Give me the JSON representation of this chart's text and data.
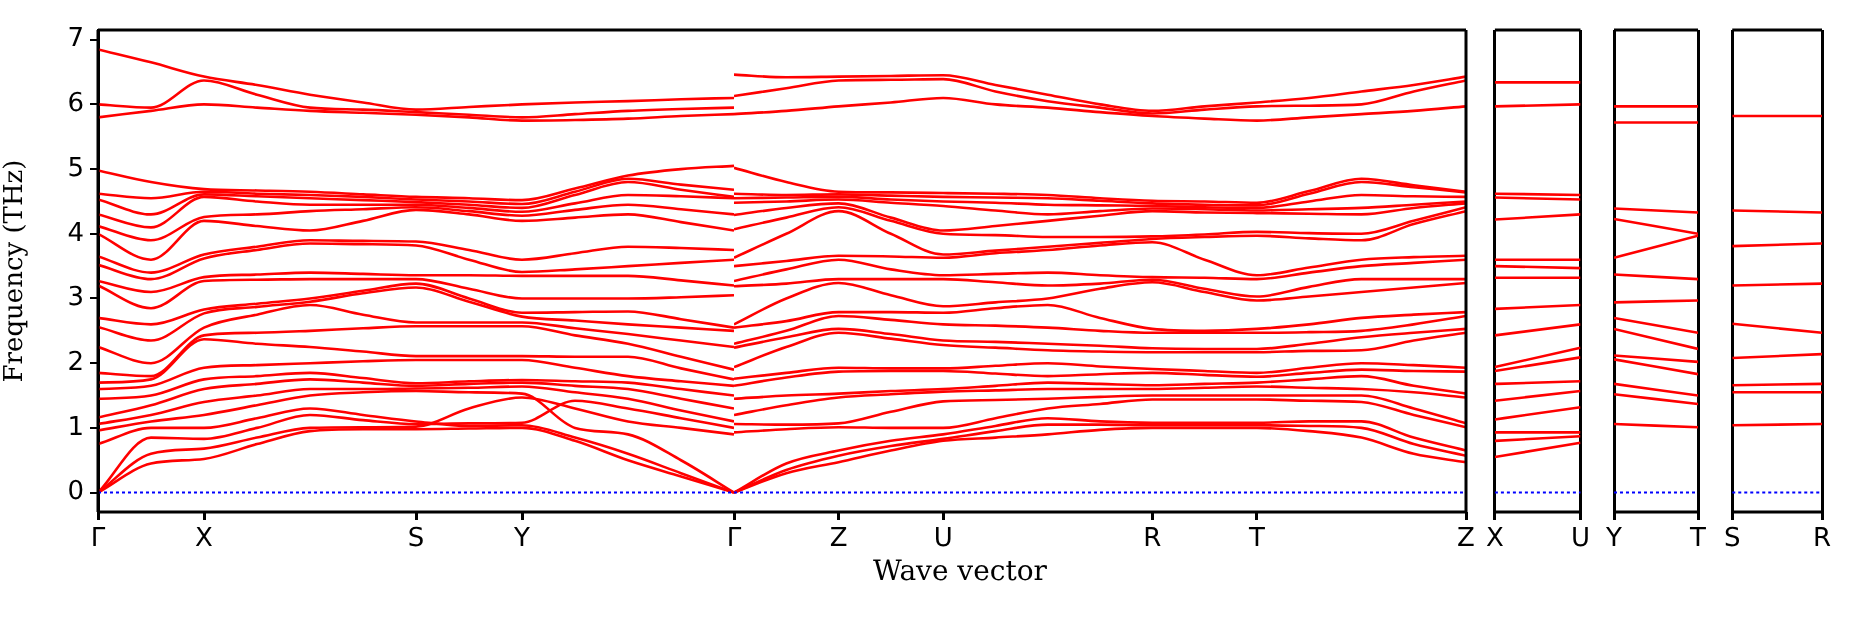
{
  "chart_data": [
    {
      "type": "line",
      "ylabel": "Frequency (THz)",
      "grid": false,
      "legend": false,
      "ylim": [
        -0.3,
        7.15
      ],
      "yticks": [
        0,
        1,
        2,
        3,
        4,
        5,
        6,
        7
      ],
      "categories": [
        "Γ",
        null,
        "X",
        null,
        null,
        null,
        "S",
        null,
        "Y",
        null,
        null,
        null,
        "Γ"
      ],
      "ref_lines": [
        {
          "axis": "y",
          "value": 0,
          "color": "#0000ff",
          "line_style": "dotted"
        }
      ],
      "series": [
        {
          "color": "#ff0000",
          "values": [
            0,
            0.45,
            0.52,
            0.75,
            0.95,
            0.98,
            0.98,
            0.99,
            1.0,
            0.8,
            0.5,
            0.25,
            0
          ]
        },
        {
          "color": "#ff0000",
          "values": [
            0,
            0.6,
            0.68,
            0.85,
            1.0,
            1.01,
            1.02,
            1.3,
            1.47,
            1.3,
            1.1,
            1.0,
            0.9
          ]
        },
        {
          "color": "#ff0000",
          "values": [
            0,
            0.85,
            0.83,
            1.0,
            1.2,
            1.12,
            1.06,
            1.07,
            1.08,
            1.42,
            1.3,
            1.15,
            1.0
          ]
        },
        {
          "color": "#ff0000",
          "values": [
            0.75,
            1.0,
            1.0,
            1.15,
            1.3,
            1.2,
            1.1,
            1.03,
            1.04,
            0.85,
            0.6,
            0.3,
            0
          ]
        },
        {
          "color": "#ff0000",
          "values": [
            0.96,
            1.1,
            1.2,
            1.35,
            1.5,
            1.55,
            1.57,
            1.55,
            1.53,
            1.0,
            0.9,
            0.5,
            0
          ]
        },
        {
          "color": "#ff0000",
          "values": [
            1.06,
            1.2,
            1.4,
            1.5,
            1.6,
            1.6,
            1.61,
            1.62,
            1.64,
            1.55,
            1.45,
            1.27,
            1.1
          ]
        },
        {
          "color": "#ff0000",
          "values": [
            1.16,
            1.35,
            1.6,
            1.68,
            1.75,
            1.7,
            1.65,
            1.68,
            1.7,
            1.65,
            1.6,
            1.45,
            1.3
          ]
        },
        {
          "color": "#ff0000",
          "values": [
            1.45,
            1.5,
            1.75,
            1.8,
            1.85,
            1.77,
            1.69,
            1.72,
            1.74,
            1.72,
            1.7,
            1.6,
            1.5
          ]
        },
        {
          "color": "#ff0000",
          "values": [
            1.6,
            1.65,
            1.93,
            1.97,
            2.0,
            2.03,
            2.05,
            2.05,
            2.05,
            1.93,
            1.8,
            1.72,
            1.65
          ]
        },
        {
          "color": "#ff0000",
          "values": [
            1.7,
            1.75,
            2.37,
            2.3,
            2.25,
            2.18,
            2.11,
            2.11,
            2.11,
            2.1,
            2.1,
            1.92,
            1.75
          ]
        },
        {
          "color": "#ff0000",
          "values": [
            1.85,
            1.8,
            2.43,
            2.47,
            2.5,
            2.54,
            2.57,
            2.57,
            2.57,
            2.43,
            2.3,
            2.1,
            1.9
          ]
        },
        {
          "color": "#ff0000",
          "values": [
            2.25,
            2.0,
            2.55,
            2.75,
            2.9,
            2.75,
            2.63,
            2.63,
            2.63,
            2.54,
            2.45,
            2.35,
            2.25
          ]
        },
        {
          "color": "#ff0000",
          "values": [
            2.56,
            2.35,
            2.77,
            2.87,
            2.95,
            3.08,
            3.17,
            2.95,
            2.72,
            2.66,
            2.6,
            2.55,
            2.5
          ]
        },
        {
          "color": "#ff0000",
          "values": [
            2.7,
            2.6,
            2.83,
            2.92,
            3.0,
            3.12,
            3.23,
            3.0,
            2.78,
            2.79,
            2.8,
            2.68,
            2.55
          ]
        },
        {
          "color": "#ff0000",
          "values": [
            3.2,
            2.85,
            3.27,
            3.29,
            3.3,
            3.3,
            3.3,
            3.15,
            3.0,
            3.0,
            3.0,
            3.02,
            3.05
          ]
        },
        {
          "color": "#ff0000",
          "values": [
            3.27,
            3.1,
            3.33,
            3.37,
            3.4,
            3.38,
            3.36,
            3.36,
            3.35,
            3.35,
            3.35,
            3.28,
            3.2
          ]
        },
        {
          "color": "#ff0000",
          "values": [
            3.52,
            3.3,
            3.62,
            3.75,
            3.85,
            3.84,
            3.82,
            3.6,
            3.41,
            3.45,
            3.5,
            3.55,
            3.6
          ]
        },
        {
          "color": "#ff0000",
          "values": [
            3.65,
            3.4,
            3.68,
            3.8,
            3.9,
            3.89,
            3.88,
            3.75,
            3.6,
            3.7,
            3.8,
            3.78,
            3.75
          ]
        },
        {
          "color": "#ff0000",
          "values": [
            4.0,
            3.6,
            4.2,
            4.12,
            4.05,
            4.2,
            4.37,
            4.3,
            4.2,
            4.25,
            4.3,
            4.18,
            4.05
          ]
        },
        {
          "color": "#ff0000",
          "values": [
            4.12,
            3.9,
            4.26,
            4.3,
            4.35,
            4.38,
            4.41,
            4.35,
            4.28,
            4.37,
            4.45,
            4.38,
            4.3
          ]
        },
        {
          "color": "#ff0000",
          "values": [
            4.3,
            4.1,
            4.57,
            4.5,
            4.45,
            4.45,
            4.45,
            4.4,
            4.34,
            4.47,
            4.6,
            4.58,
            4.55
          ]
        },
        {
          "color": "#ff0000",
          "values": [
            4.53,
            4.3,
            4.61,
            4.58,
            4.55,
            4.52,
            4.49,
            4.45,
            4.4,
            4.6,
            4.8,
            4.68,
            4.57
          ]
        },
        {
          "color": "#ff0000",
          "values": [
            4.62,
            4.55,
            4.65,
            4.62,
            4.6,
            4.57,
            4.53,
            4.5,
            4.46,
            4.65,
            4.85,
            4.76,
            4.68
          ]
        },
        {
          "color": "#ff0000",
          "values": [
            4.98,
            4.8,
            4.69,
            4.67,
            4.65,
            4.61,
            4.57,
            4.55,
            4.52,
            4.7,
            4.9,
            5.0,
            5.05
          ]
        },
        {
          "color": "#ff0000",
          "values": [
            5.8,
            5.9,
            6.0,
            5.95,
            5.9,
            5.87,
            5.84,
            5.8,
            5.75,
            5.76,
            5.78,
            5.82,
            5.85
          ]
        },
        {
          "color": "#ff0000",
          "values": [
            6.0,
            5.95,
            6.37,
            6.15,
            5.95,
            5.92,
            5.88,
            5.84,
            5.8,
            5.85,
            5.9,
            5.93,
            5.95
          ]
        },
        {
          "color": "#ff0000",
          "values": [
            6.85,
            6.65,
            6.43,
            6.3,
            6.15,
            6.03,
            5.92,
            5.96,
            6.0,
            6.03,
            6.05,
            6.08,
            6.1
          ]
        }
      ]
    },
    {
      "type": "line",
      "xlabel": "Wave vector",
      "grid": false,
      "legend": false,
      "tick_labels": "x",
      "ylim": [
        -0.3,
        7.15
      ],
      "categories": [
        null,
        null,
        "Z",
        null,
        "U",
        null,
        null,
        null,
        "R",
        null,
        "T",
        null,
        null,
        null,
        "Z"
      ],
      "ref_lines": [
        {
          "axis": "y",
          "value": 0,
          "color": "#0000ff",
          "line_style": "dotted"
        }
      ],
      "series": [
        {
          "color": "#ff0000",
          "values": [
            0,
            0.3,
            0.47,
            0.65,
            0.8,
            0.85,
            0.9,
            0.97,
            1.0,
            1.0,
            1.0,
            0.95,
            0.85,
            0.6,
            0.47
          ]
        },
        {
          "color": "#ff0000",
          "values": [
            0,
            0.35,
            0.57,
            0.72,
            0.83,
            0.95,
            1.05,
            1.05,
            1.04,
            1.04,
            1.04,
            1.03,
            1.0,
            0.75,
            0.57
          ]
        },
        {
          "color": "#ff0000",
          "values": [
            0,
            0.45,
            0.65,
            0.8,
            0.9,
            1.03,
            1.15,
            1.1,
            1.08,
            1.08,
            1.08,
            1.1,
            1.1,
            0.85,
            0.65
          ]
        },
        {
          "color": "#ff0000",
          "values": [
            0.93,
            0.98,
            1.01,
            1.0,
            1.0,
            1.15,
            1.3,
            1.37,
            1.44,
            1.44,
            1.44,
            1.42,
            1.4,
            1.2,
            1.01
          ]
        },
        {
          "color": "#ff0000",
          "values": [
            1.06,
            1.05,
            1.07,
            1.25,
            1.41,
            1.43,
            1.45,
            1.48,
            1.5,
            1.5,
            1.5,
            1.5,
            1.5,
            1.3,
            1.07
          ]
        },
        {
          "color": "#ff0000",
          "values": [
            1.2,
            1.35,
            1.47,
            1.52,
            1.56,
            1.58,
            1.6,
            1.6,
            1.6,
            1.62,
            1.64,
            1.62,
            1.6,
            1.55,
            1.47
          ]
        },
        {
          "color": "#ff0000",
          "values": [
            1.45,
            1.5,
            1.53,
            1.57,
            1.6,
            1.65,
            1.7,
            1.68,
            1.66,
            1.68,
            1.7,
            1.75,
            1.8,
            1.65,
            1.53
          ]
        },
        {
          "color": "#ff0000",
          "values": [
            1.65,
            1.78,
            1.87,
            1.88,
            1.88,
            1.84,
            1.8,
            1.83,
            1.85,
            1.82,
            1.79,
            1.85,
            1.9,
            1.88,
            1.87
          ]
        },
        {
          "color": "#ff0000",
          "values": [
            1.76,
            1.85,
            1.93,
            1.92,
            1.92,
            1.96,
            2.0,
            1.95,
            1.91,
            1.88,
            1.85,
            1.93,
            2.0,
            1.97,
            1.93
          ]
        },
        {
          "color": "#ff0000",
          "values": [
            1.94,
            2.25,
            2.47,
            2.38,
            2.28,
            2.24,
            2.2,
            2.18,
            2.17,
            2.17,
            2.17,
            2.19,
            2.2,
            2.35,
            2.47
          ]
        },
        {
          "color": "#ff0000",
          "values": [
            2.24,
            2.4,
            2.53,
            2.45,
            2.35,
            2.33,
            2.3,
            2.27,
            2.23,
            2.22,
            2.22,
            2.3,
            2.4,
            2.47,
            2.53
          ]
        },
        {
          "color": "#ff0000",
          "values": [
            2.3,
            2.5,
            2.73,
            2.67,
            2.6,
            2.58,
            2.55,
            2.5,
            2.47,
            2.47,
            2.47,
            2.48,
            2.5,
            2.6,
            2.73
          ]
        },
        {
          "color": "#ff0000",
          "values": [
            2.55,
            2.65,
            2.79,
            2.79,
            2.78,
            2.85,
            2.9,
            2.7,
            2.53,
            2.5,
            2.53,
            2.6,
            2.7,
            2.75,
            2.79
          ]
        },
        {
          "color": "#ff0000",
          "values": [
            2.6,
            3.0,
            3.24,
            3.05,
            2.88,
            2.94,
            3.0,
            3.15,
            3.25,
            3.1,
            2.97,
            3.03,
            3.1,
            3.17,
            3.24
          ]
        },
        {
          "color": "#ff0000",
          "values": [
            3.19,
            3.23,
            3.3,
            3.3,
            3.3,
            3.25,
            3.2,
            3.23,
            3.29,
            3.15,
            3.03,
            3.18,
            3.3,
            3.3,
            3.3
          ]
        },
        {
          "color": "#ff0000",
          "values": [
            3.27,
            3.45,
            3.6,
            3.45,
            3.36,
            3.38,
            3.4,
            3.36,
            3.33,
            3.32,
            3.3,
            3.4,
            3.5,
            3.55,
            3.6
          ]
        },
        {
          "color": "#ff0000",
          "values": [
            3.5,
            3.58,
            3.66,
            3.65,
            3.63,
            3.7,
            3.75,
            3.82,
            3.87,
            3.6,
            3.36,
            3.48,
            3.6,
            3.64,
            3.66
          ]
        },
        {
          "color": "#ff0000",
          "values": [
            3.63,
            4.0,
            4.35,
            4.0,
            3.68,
            3.74,
            3.8,
            3.86,
            3.92,
            3.95,
            3.97,
            3.93,
            3.9,
            4.15,
            4.35
          ]
        },
        {
          "color": "#ff0000",
          "values": [
            4.07,
            4.25,
            4.41,
            4.2,
            4.0,
            3.98,
            3.95,
            3.95,
            3.96,
            3.99,
            4.03,
            4.01,
            4.0,
            4.2,
            4.41
          ]
        },
        {
          "color": "#ff0000",
          "values": [
            4.29,
            4.4,
            4.47,
            4.25,
            4.05,
            4.12,
            4.2,
            4.28,
            4.35,
            4.33,
            4.32,
            4.31,
            4.3,
            4.4,
            4.47
          ]
        },
        {
          "color": "#ff0000",
          "values": [
            4.48,
            4.5,
            4.53,
            4.48,
            4.43,
            4.36,
            4.3,
            4.35,
            4.39,
            4.38,
            4.36,
            4.38,
            4.4,
            4.45,
            4.5
          ]
        },
        {
          "color": "#ff0000",
          "values": [
            4.55,
            4.56,
            4.57,
            4.53,
            4.5,
            4.48,
            4.45,
            4.44,
            4.43,
            4.41,
            4.4,
            4.5,
            4.6,
            4.58,
            4.57
          ]
        },
        {
          "color": "#ff0000",
          "values": [
            4.62,
            4.6,
            4.61,
            4.59,
            4.57,
            4.56,
            4.55,
            4.51,
            4.47,
            4.45,
            4.44,
            4.62,
            4.8,
            4.72,
            4.64
          ]
        },
        {
          "color": "#ff0000",
          "values": [
            5.02,
            4.8,
            4.65,
            4.64,
            4.63,
            4.62,
            4.6,
            4.55,
            4.51,
            4.5,
            4.48,
            4.66,
            4.85,
            4.75,
            4.65
          ]
        },
        {
          "color": "#ff0000",
          "values": [
            5.85,
            5.9,
            5.97,
            6.03,
            6.1,
            6.0,
            5.95,
            5.88,
            5.82,
            5.78,
            5.75,
            5.8,
            5.85,
            5.9,
            5.97
          ]
        },
        {
          "color": "#ff0000",
          "values": [
            6.13,
            6.25,
            6.37,
            6.38,
            6.39,
            6.2,
            6.05,
            5.95,
            5.86,
            5.92,
            5.97,
            5.98,
            6.0,
            6.2,
            6.37
          ]
        },
        {
          "color": "#ff0000",
          "values": [
            6.46,
            6.42,
            6.43,
            6.44,
            6.45,
            6.3,
            6.15,
            6.0,
            5.9,
            5.97,
            6.03,
            6.1,
            6.2,
            6.3,
            6.43
          ]
        }
      ]
    },
    {
      "type": "line",
      "grid": "x",
      "legend": false,
      "tick_labels": "x",
      "ylim": [
        -0.3,
        7.15
      ],
      "categories": [
        "X",
        "U"
      ],
      "ref_lines": [
        {
          "axis": "y",
          "value": 0,
          "color": "#0000ff",
          "line_style": "dotted"
        }
      ],
      "series": [
        {
          "color": "#ff0000",
          "values": [
            0.55,
            0.77
          ]
        },
        {
          "color": "#ff0000",
          "values": [
            0.8,
            0.87
          ]
        },
        {
          "color": "#ff0000",
          "values": [
            0.93,
            0.93
          ]
        },
        {
          "color": "#ff0000",
          "values": [
            1.13,
            1.32
          ]
        },
        {
          "color": "#ff0000",
          "values": [
            1.42,
            1.57
          ]
        },
        {
          "color": "#ff0000",
          "values": [
            1.68,
            1.72
          ]
        },
        {
          "color": "#ff0000",
          "values": [
            1.88,
            2.09
          ]
        },
        {
          "color": "#ff0000",
          "values": [
            1.94,
            2.24
          ]
        },
        {
          "color": "#ff0000",
          "values": [
            2.43,
            2.6
          ]
        },
        {
          "color": "#ff0000",
          "values": [
            2.84,
            2.9
          ]
        },
        {
          "color": "#ff0000",
          "values": [
            3.32,
            3.32
          ]
        },
        {
          "color": "#ff0000",
          "values": [
            3.5,
            3.47
          ]
        },
        {
          "color": "#ff0000",
          "values": [
            3.6,
            3.6
          ]
        },
        {
          "color": "#ff0000",
          "values": [
            4.22,
            4.3
          ]
        },
        {
          "color": "#ff0000",
          "values": [
            4.56,
            4.53
          ]
        },
        {
          "color": "#ff0000",
          "values": [
            4.62,
            4.6
          ]
        },
        {
          "color": "#ff0000",
          "values": [
            5.97,
            6.0
          ]
        },
        {
          "color": "#ff0000",
          "values": [
            6.34,
            6.34
          ]
        }
      ]
    },
    {
      "type": "line",
      "grid": "x",
      "legend": false,
      "tick_labels": "x",
      "ylim": [
        -0.3,
        7.15
      ],
      "categories": [
        "Y",
        "T"
      ],
      "ref_lines": [
        {
          "axis": "y",
          "value": 0,
          "color": "#0000ff",
          "line_style": "dotted"
        }
      ],
      "series": [
        {
          "color": "#ff0000",
          "values": [
            1.06,
            1.01
          ]
        },
        {
          "color": "#ff0000",
          "values": [
            1.52,
            1.37
          ]
        },
        {
          "color": "#ff0000",
          "values": [
            1.68,
            1.5
          ]
        },
        {
          "color": "#ff0000",
          "values": [
            2.06,
            1.83
          ]
        },
        {
          "color": "#ff0000",
          "values": [
            2.12,
            2.02
          ]
        },
        {
          "color": "#ff0000",
          "values": [
            2.53,
            2.22
          ]
        },
        {
          "color": "#ff0000",
          "values": [
            2.7,
            2.47
          ]
        },
        {
          "color": "#ff0000",
          "values": [
            2.94,
            2.97
          ]
        },
        {
          "color": "#ff0000",
          "values": [
            3.37,
            3.3
          ]
        },
        {
          "color": "#ff0000",
          "values": [
            3.63,
            3.97
          ]
        },
        {
          "color": "#ff0000",
          "values": [
            4.23,
            4.0
          ]
        },
        {
          "color": "#ff0000",
          "values": [
            4.39,
            4.33
          ]
        },
        {
          "color": "#ff0000",
          "values": [
            5.72,
            5.72
          ]
        },
        {
          "color": "#ff0000",
          "values": [
            5.97,
            5.97
          ]
        }
      ]
    },
    {
      "type": "line",
      "grid": "x",
      "legend": false,
      "tick_labels": "x",
      "ylim": [
        -0.3,
        7.15
      ],
      "categories": [
        "S",
        "R"
      ],
      "ref_lines": [
        {
          "axis": "y",
          "value": 0,
          "color": "#0000ff",
          "line_style": "dotted"
        }
      ],
      "series": [
        {
          "color": "#ff0000",
          "values": [
            1.04,
            1.06
          ]
        },
        {
          "color": "#ff0000",
          "values": [
            1.55,
            1.55
          ]
        },
        {
          "color": "#ff0000",
          "values": [
            1.66,
            1.68
          ]
        },
        {
          "color": "#ff0000",
          "values": [
            2.08,
            2.14
          ]
        },
        {
          "color": "#ff0000",
          "values": [
            2.61,
            2.47
          ]
        },
        {
          "color": "#ff0000",
          "values": [
            3.2,
            3.23
          ]
        },
        {
          "color": "#ff0000",
          "values": [
            3.81,
            3.85
          ]
        },
        {
          "color": "#ff0000",
          "values": [
            4.36,
            4.33
          ]
        },
        {
          "color": "#ff0000",
          "values": [
            5.82,
            5.82
          ]
        }
      ]
    }
  ]
}
